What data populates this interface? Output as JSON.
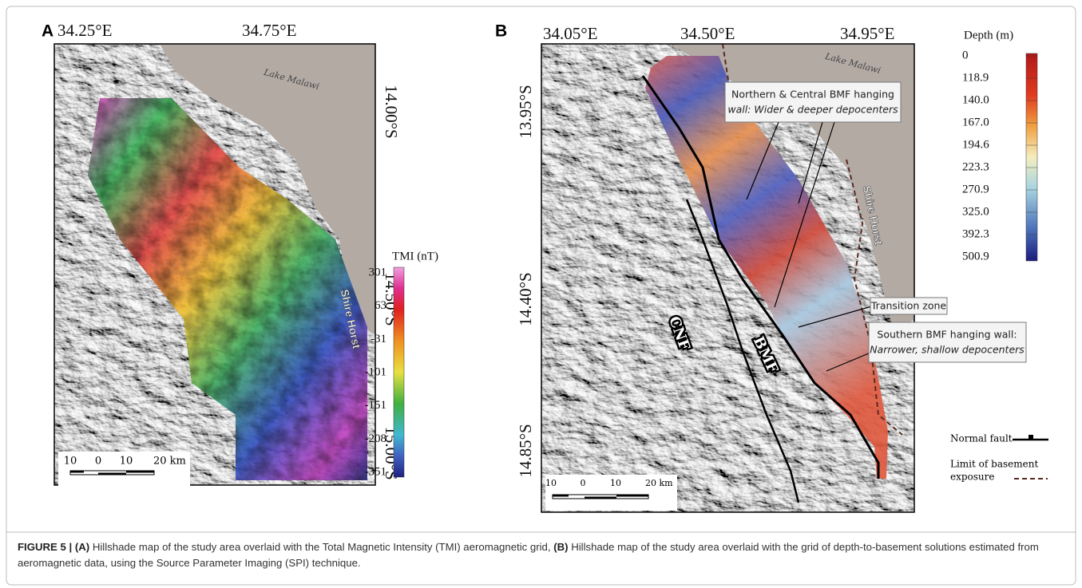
{
  "panel_a": {
    "label": "A",
    "lon_labels": [
      "34.25°E",
      "34.75°E"
    ],
    "lat_labels": [
      "14.00°S",
      "14.50°S",
      "15.00°S"
    ],
    "lake": "Lake Malawi",
    "horst": "Shire Horst",
    "colorbar": {
      "title": "TMI (nT)",
      "ticks": [
        "301",
        "63",
        "-31",
        "-101",
        "-151",
        "-208",
        "-351"
      ]
    },
    "scale": [
      "10",
      "0",
      "10",
      "20 km"
    ]
  },
  "panel_b": {
    "label": "B",
    "lon_labels": [
      "34.05°E",
      "34.50°E",
      "34.95°E"
    ],
    "lat_labels": [
      "13.95°S",
      "14.40°S",
      "14.85°S"
    ],
    "lake": "Lake Malawi",
    "horst": "Shire Horst",
    "faults": [
      "CNF",
      "BMF"
    ],
    "annotations": [
      {
        "line1": "Northern & Central BMF hanging",
        "line2": "wall: Wider & deeper depocenters"
      },
      {
        "line1": "Transition zone"
      },
      {
        "line1": "Southern BMF hanging wall:",
        "line2": "Narrower, shallow depocenters"
      }
    ],
    "colorbar": {
      "title": "Depth (m)",
      "ticks": [
        "0",
        "118.9",
        "140.0",
        "167.0",
        "194.6",
        "223.3",
        "270.9",
        "325.0",
        "392.3",
        "500.9"
      ]
    },
    "legend": {
      "fault": "Normal fault",
      "limit_1": "Limit of basement",
      "limit_2": "exposure"
    },
    "scale": [
      "10",
      "0",
      "10",
      "20 km"
    ]
  },
  "caption": {
    "label": "FIGURE 5 |",
    "a_label": "(A)",
    "a_text": "Hillshade map of the study area overlaid with the Total Magnetic Intensity (TMI) aeromagnetic grid,",
    "b_label": "(B)",
    "b_text": "Hillshade map of the study area overlaid with the grid of depth-to-basement solutions estimated from aeromagnetic data, using the Source Parameter Imaging (SPI) technique."
  }
}
